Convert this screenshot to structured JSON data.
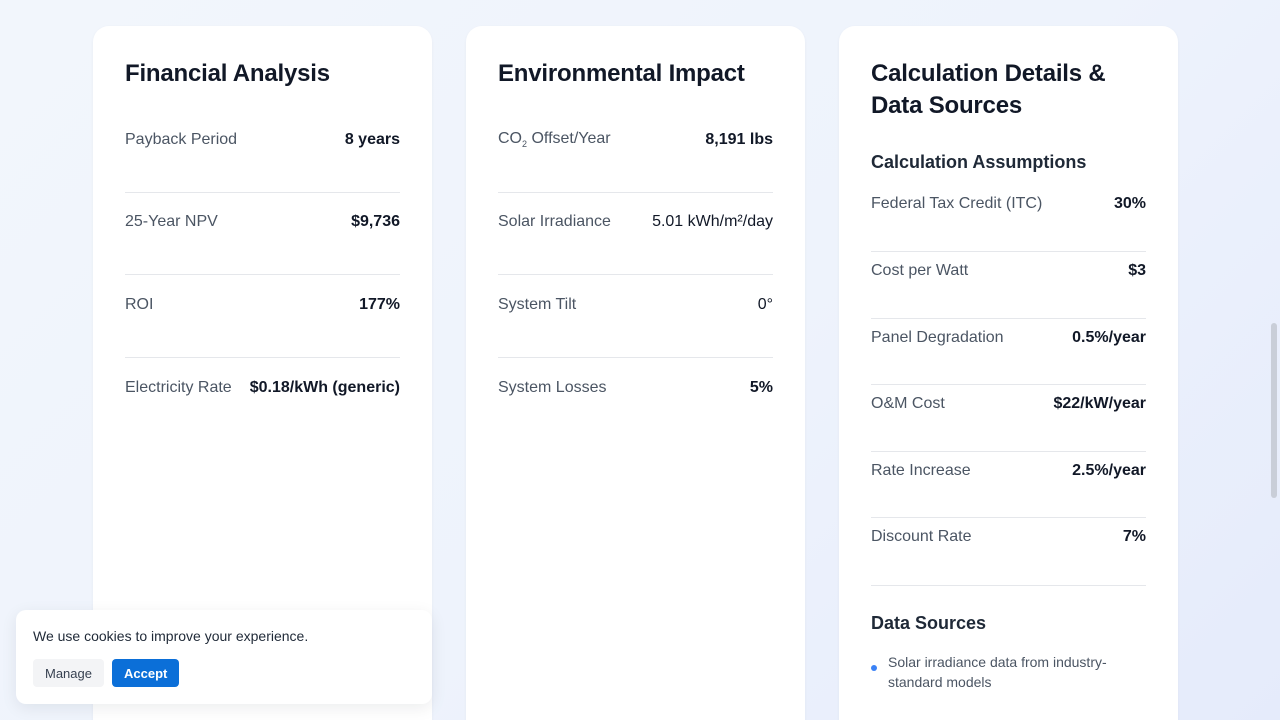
{
  "financial": {
    "title": "Financial Analysis",
    "rows": [
      {
        "label": "Payback Period",
        "value": "8 years"
      },
      {
        "label": "25-Year NPV",
        "value": "$9,736"
      },
      {
        "label": "ROI",
        "value": "177%"
      },
      {
        "label": "Electricity Rate",
        "value": "$0.18/kWh (generic)"
      }
    ]
  },
  "environmental": {
    "title": "Environmental Impact",
    "co2_label_prefix": "CO",
    "co2_label_sub": "2",
    "co2_label_suffix": " Offset/Year",
    "rows": [
      {
        "label": "CO2 Offset/Year",
        "value": "8,191 lbs"
      },
      {
        "label": "Solar Irradiance",
        "value": "5.01 kWh/m²/day"
      },
      {
        "label": "System Tilt",
        "value": "0°"
      },
      {
        "label": "System Losses",
        "value": "5%"
      }
    ]
  },
  "calculation": {
    "title": "Calculation Details & Data Sources",
    "assumptions_heading": "Calculation Assumptions",
    "assumptions": [
      {
        "label": "Federal Tax Credit (ITC)",
        "value": "30%"
      },
      {
        "label": "Cost per Watt",
        "value": "$3"
      },
      {
        "label": "Panel Degradation",
        "value": "0.5%/year"
      },
      {
        "label": "O&M Cost",
        "value": "$22/kW/year"
      },
      {
        "label": "Rate Increase",
        "value": "2.5%/year"
      },
      {
        "label": "Discount Rate",
        "value": "7%"
      }
    ],
    "sources_heading": "Data Sources",
    "sources": [
      "Solar irradiance data from industry-standard models"
    ]
  },
  "cookie": {
    "message": "We use cookies to improve your experience.",
    "manage_label": "Manage",
    "accept_label": "Accept"
  },
  "colors": {
    "accent": "#0b6fd8",
    "bullet": "#3b82f6"
  }
}
